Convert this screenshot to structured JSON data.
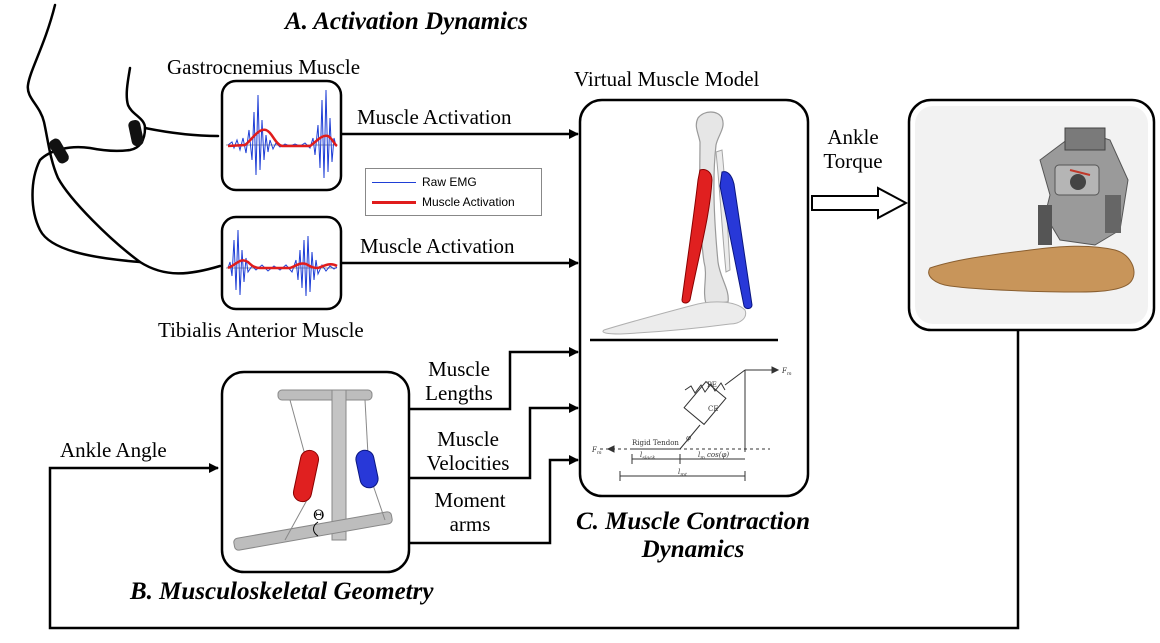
{
  "sections": {
    "activation": "A. Activation Dynamics",
    "geometry": "B. Musculoskeletal Geometry",
    "contraction_line1": "C. Muscle Contraction",
    "contraction_line2": "Dynamics"
  },
  "labels": {
    "gastrocnemius": "Gastrocnemius Muscle",
    "tibialis": "Tibialis Anterior Muscle",
    "virtual_model": "Virtual Muscle Model",
    "activation_top": "Muscle Activation",
    "activation_bottom": "Muscle Activation",
    "torque_line1": "Ankle",
    "torque_line2": "Torque",
    "ankle_angle": "Ankle Angle",
    "lengths_line1": "Muscle",
    "lengths_line2": "Lengths",
    "velocities_line1": "Muscle",
    "velocities_line2": "Velocities",
    "moment_line1": "Moment",
    "moment_line2": "arms"
  },
  "legend": {
    "raw_emg": "Raw EMG",
    "muscle_activation": "Muscle Activation"
  },
  "hill_model": {
    "pe": "PE",
    "ce": "CE",
    "rigid_tendon": "Rigid Tendon",
    "fm_right": "F",
    "fm_left": "F",
    "fm_sub": "m",
    "phi": "φ",
    "l_slack": "l",
    "l_slack_sub": "slack",
    "l_m_cos": "l",
    "l_m_cos_sub": "m",
    "l_m_cos_rest": "cos(φ)",
    "l_mt": "l",
    "l_mt_sub": "mt"
  },
  "colors": {
    "emg": "#1f3fd6",
    "activation": "#e01c1c",
    "muscle_red": "#e02020",
    "muscle_blue": "#2838d8",
    "foot": "#c8955a",
    "panel_bg": "#f2f2f2"
  }
}
